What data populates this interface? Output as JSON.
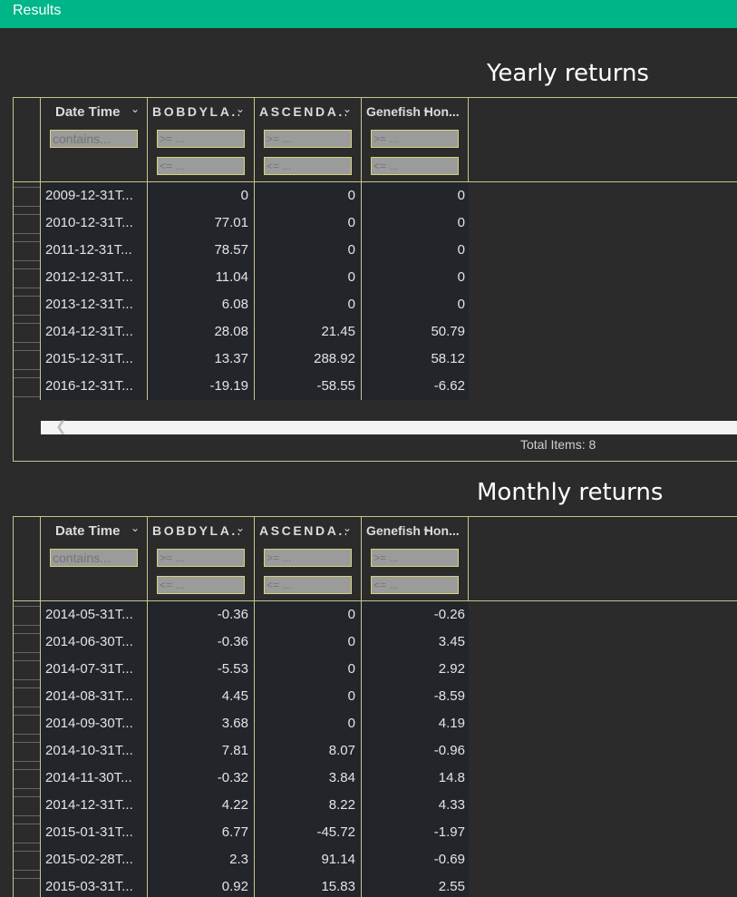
{
  "header": {
    "title": "Results"
  },
  "columns": {
    "date": "Date Time",
    "c1": "BOBDYLA...",
    "c2": "ASCENDA...",
    "c3": "Genefish Hon..."
  },
  "filters": {
    "contains": "contains...",
    "gte": ">= ...",
    "lte": "<= ..."
  },
  "yearly": {
    "title": "Yearly returns",
    "total_label": "Total Items: 8",
    "rows": [
      [
        "2009-12-31T...",
        "0",
        "0",
        "0"
      ],
      [
        "2010-12-31T...",
        "77.01",
        "0",
        "0"
      ],
      [
        "2011-12-31T...",
        "78.57",
        "0",
        "0"
      ],
      [
        "2012-12-31T...",
        "11.04",
        "0",
        "0"
      ],
      [
        "2013-12-31T...",
        "6.08",
        "0",
        "0"
      ],
      [
        "2014-12-31T...",
        "28.08",
        "21.45",
        "50.79"
      ],
      [
        "2015-12-31T...",
        "13.37",
        "288.92",
        "58.12"
      ],
      [
        "2016-12-31T...",
        "-19.19",
        "-58.55",
        "-6.62"
      ]
    ]
  },
  "monthly": {
    "title": "Monthly returns",
    "rows": [
      [
        "2014-05-31T...",
        "-0.36",
        "0",
        "-0.26"
      ],
      [
        "2014-06-30T...",
        "-0.36",
        "0",
        "3.45"
      ],
      [
        "2014-07-31T...",
        "-5.53",
        "0",
        "2.92"
      ],
      [
        "2014-08-31T...",
        "4.45",
        "0",
        "-8.59"
      ],
      [
        "2014-09-30T...",
        "3.68",
        "0",
        "4.19"
      ],
      [
        "2014-10-31T...",
        "7.81",
        "8.07",
        "-0.96"
      ],
      [
        "2014-11-30T...",
        "-0.32",
        "3.84",
        "14.8"
      ],
      [
        "2014-12-31T...",
        "4.22",
        "8.22",
        "4.33"
      ],
      [
        "2015-01-31T...",
        "6.77",
        "-45.72",
        "-1.97"
      ],
      [
        "2015-02-28T...",
        "2.3",
        "91.14",
        "-0.69"
      ],
      [
        "2015-03-31T...",
        "0.92",
        "15.83",
        "2.55"
      ]
    ]
  },
  "icons": {
    "sort": "chevron-down-icon",
    "scroll_left": "chevron-left-icon"
  }
}
